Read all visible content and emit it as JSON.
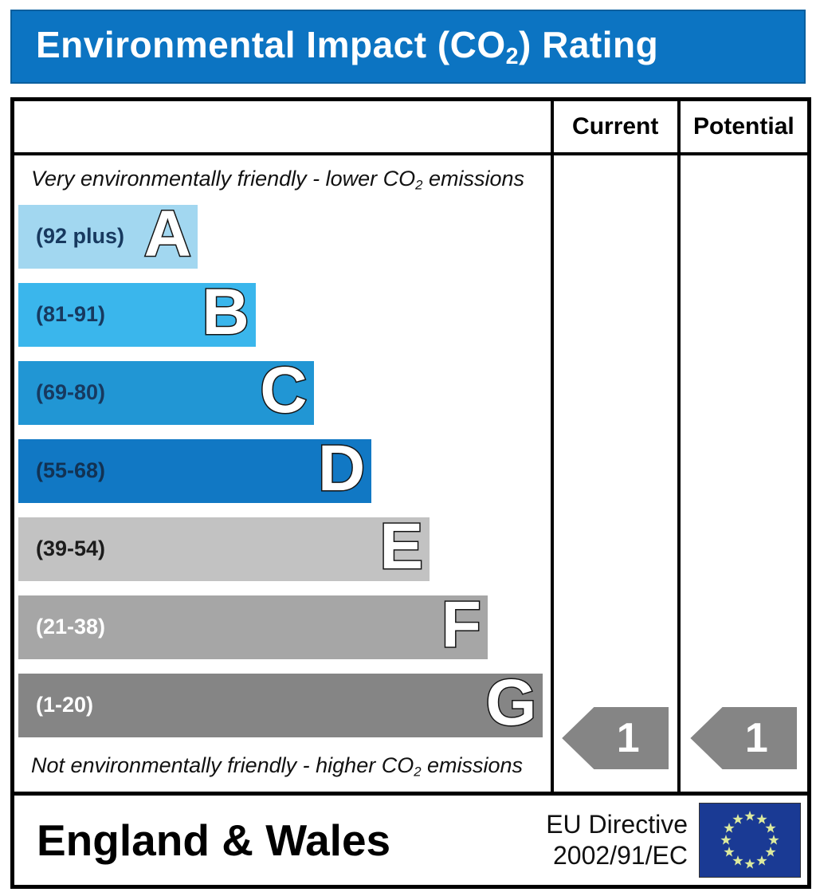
{
  "title_bar": {
    "text_prefix": "Environmental Impact (CO",
    "text_sub": "2",
    "text_suffix": ") Rating",
    "bg": "#0c74c2",
    "fg": "#ffffff"
  },
  "table": {
    "header": {
      "current": "Current",
      "potential": "Potential"
    },
    "top_note": {
      "prefix": "Very environmentally friendly - lower CO",
      "sub": "2",
      "suffix": " emissions"
    },
    "bottom_note": {
      "prefix": "Not environmentally friendly - higher CO",
      "sub": "2",
      "suffix": " emissions"
    },
    "bands": [
      {
        "letter": "A",
        "range": "(92 plus)",
        "color": "#a2d7f0",
        "label_color": "#17395f",
        "width_pct": 34.0
      },
      {
        "letter": "B",
        "range": "(81-91)",
        "color": "#3ab6ec",
        "label_color": "#17395f",
        "width_pct": 45.0
      },
      {
        "letter": "C",
        "range": "(69-80)",
        "color": "#2196d4",
        "label_color": "#17395f",
        "width_pct": 56.0
      },
      {
        "letter": "D",
        "range": "(55-68)",
        "color": "#1178c4",
        "label_color": "#123253",
        "width_pct": 67.0
      },
      {
        "letter": "E",
        "range": "(39-54)",
        "color": "#c2c2c2",
        "label_color": "#1c1c1c",
        "width_pct": 78.0
      },
      {
        "letter": "F",
        "range": "(21-38)",
        "color": "#a6a6a6",
        "label_color": "#ffffff",
        "width_pct": 89.0
      },
      {
        "letter": "G",
        "range": "(1-20)",
        "color": "#858585",
        "label_color": "#ffffff",
        "width_pct": 99.5
      }
    ],
    "current": {
      "value": "1",
      "arrow_color": "#858585"
    },
    "potential": {
      "value": "1",
      "arrow_color": "#858585"
    }
  },
  "footer": {
    "region": "England & Wales",
    "directive_line1": "EU Directive",
    "directive_line2": "2002/91/EC",
    "flag_colors": {
      "field": "#1a3a94",
      "stars": "#dcea9e"
    }
  },
  "chart_data": {
    "type": "bar",
    "title": "Environmental Impact (CO2) Rating",
    "categories": [
      "A",
      "B",
      "C",
      "D",
      "E",
      "F",
      "G"
    ],
    "band_ranges": [
      "92 plus",
      "81-91",
      "69-80",
      "55-68",
      "39-54",
      "21-38",
      "1-20"
    ],
    "band_colors": [
      "#a2d7f0",
      "#3ab6ec",
      "#2196d4",
      "#1178c4",
      "#c2c2c2",
      "#a6a6a6",
      "#858585"
    ],
    "bar_relative_widths": [
      0.34,
      0.45,
      0.56,
      0.67,
      0.78,
      0.89,
      0.995
    ],
    "top_label": "Very environmentally friendly - lower CO2 emissions",
    "bottom_label": "Not environmentally friendly - higher CO2 emissions",
    "columns": [
      "Current",
      "Potential"
    ],
    "current": 1,
    "potential": 1,
    "current_band": "G",
    "potential_band": "G",
    "region": "England & Wales",
    "directive": "EU Directive 2002/91/EC",
    "legend_position": "none",
    "grid": false
  }
}
